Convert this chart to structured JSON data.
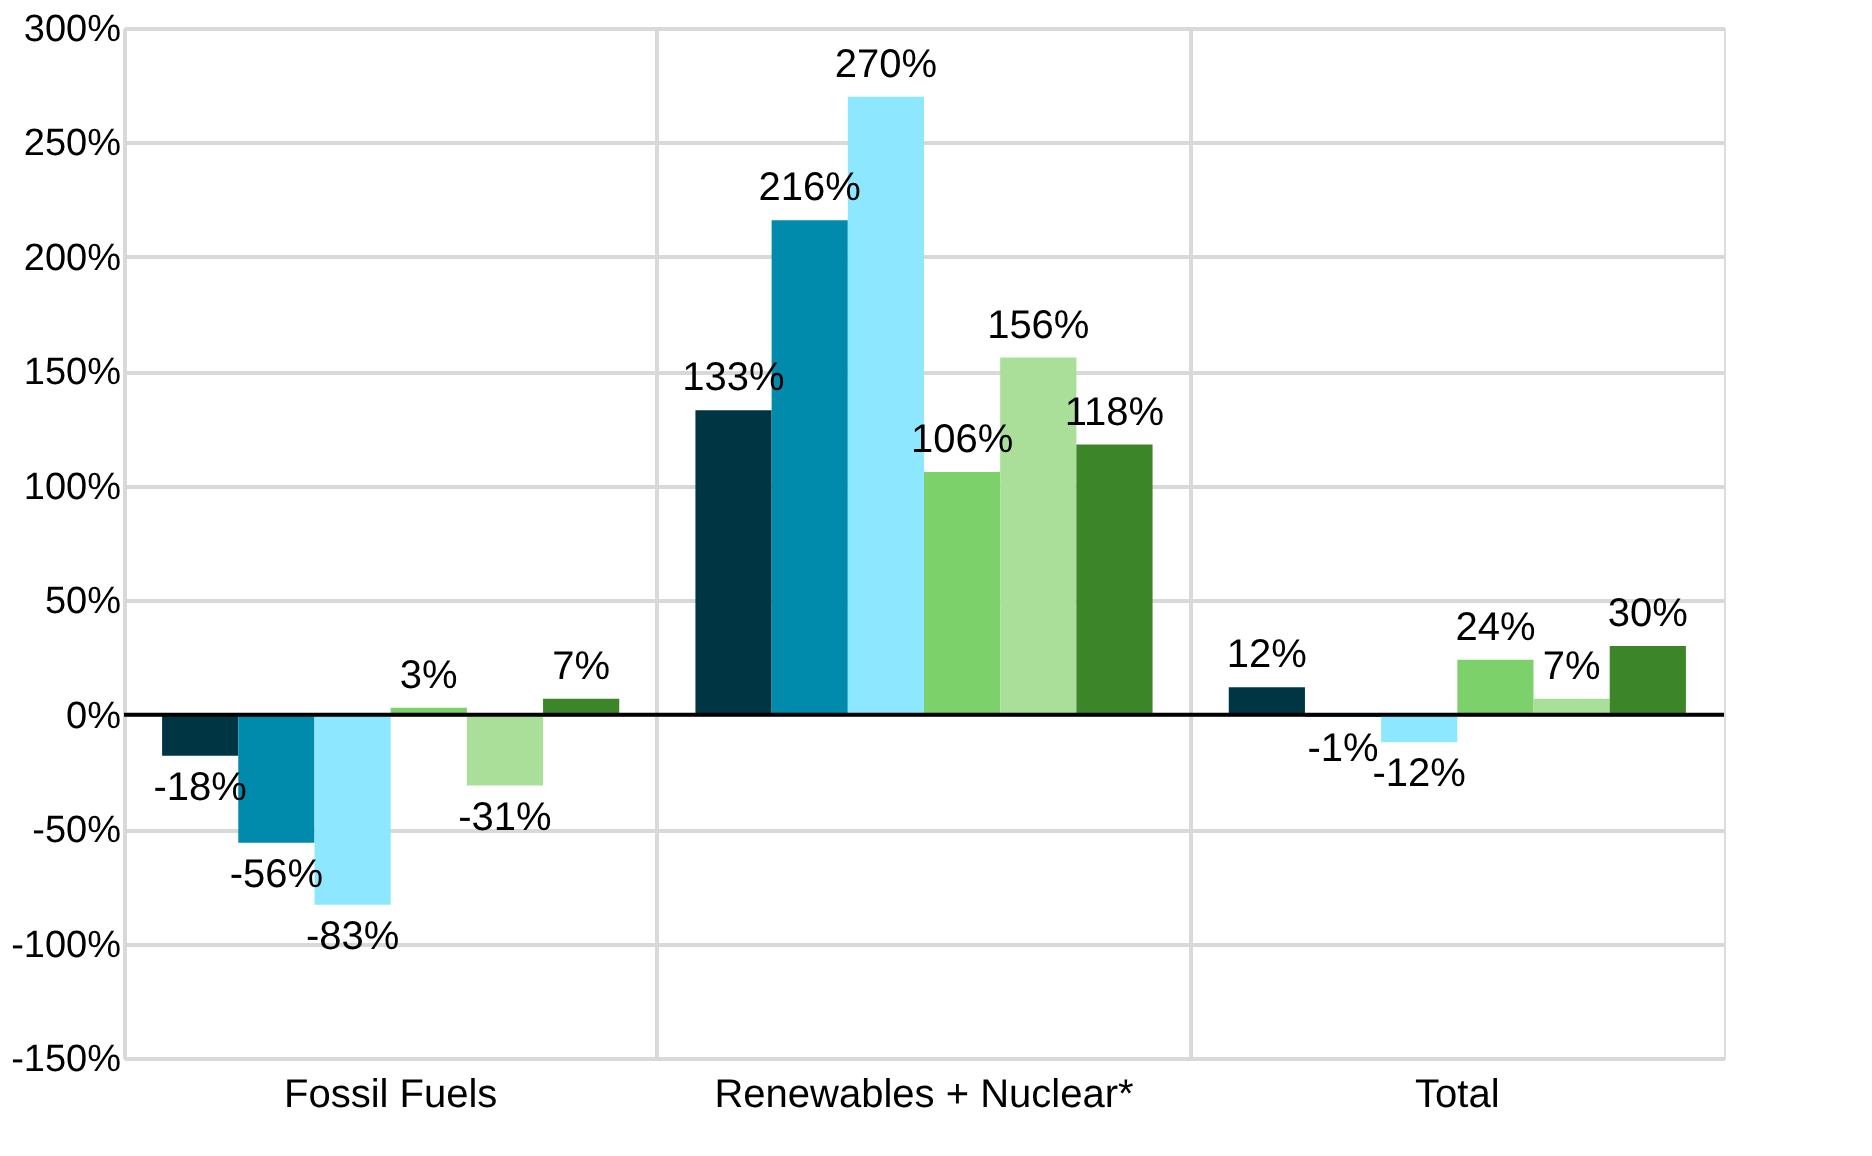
{
  "chart_data": {
    "type": "bar",
    "categories": [
      "Fossil Fuels",
      "Renewables + Nuclear*",
      "Total"
    ],
    "series": [
      {
        "color": "#003644",
        "values": [
          -18,
          133,
          12
        ],
        "value_labels": [
          "-18%",
          "133%",
          "12%"
        ]
      },
      {
        "color": "#008aab",
        "values": [
          -56,
          216,
          -1
        ],
        "value_labels": [
          "-56%",
          "216%",
          "-1%"
        ]
      },
      {
        "color": "#8de8ff",
        "values": [
          -83,
          270,
          -12
        ],
        "value_labels": [
          "-83%",
          "270%",
          "-12%"
        ]
      },
      {
        "color": "#7dd16a",
        "values": [
          3,
          106,
          24
        ],
        "value_labels": [
          "3%",
          "106%",
          "24%"
        ]
      },
      {
        "color": "#a9df99",
        "values": [
          -31,
          156,
          7
        ],
        "value_labels": [
          "-31%",
          "156%",
          "7%"
        ]
      },
      {
        "color": "#3c8629",
        "values": [
          7,
          118,
          30
        ],
        "value_labels": [
          "7%",
          "118%",
          "30%"
        ]
      }
    ],
    "ylim": [
      -150,
      300
    ],
    "yticks": [
      {
        "value": -150,
        "label": "-150%"
      },
      {
        "value": -100,
        "label": "-100%"
      },
      {
        "value": -50,
        "label": "-50%"
      },
      {
        "value": 0,
        "label": "0%"
      },
      {
        "value": 50,
        "label": "50%"
      },
      {
        "value": 100,
        "label": "100%"
      },
      {
        "value": 150,
        "label": "150%"
      },
      {
        "value": 200,
        "label": "200%"
      },
      {
        "value": 250,
        "label": "250%"
      },
      {
        "value": 300,
        "label": "300%"
      }
    ],
    "ref_lines": [
      {
        "axis": "y",
        "value": 0,
        "color": "#000000"
      }
    ],
    "grid": true,
    "legend": false
  }
}
